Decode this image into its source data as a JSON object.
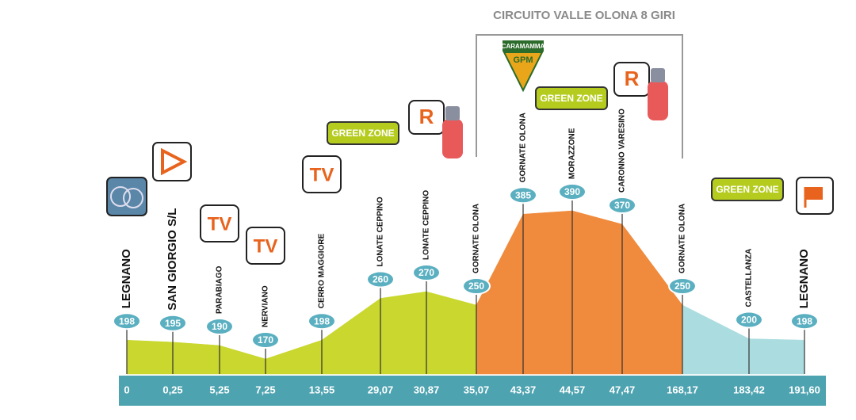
{
  "chart_data": {
    "type": "area",
    "title": "CIRCUITO VALLE OLONA 8 GIRI",
    "categories": [
      "0",
      "0,25",
      "5,25",
      "7,25",
      "13,55",
      "29,07",
      "30,87",
      "35,07",
      "43,37",
      "44,57",
      "47,47",
      "168,17",
      "183,42",
      "191,60"
    ],
    "places": [
      "LEGNANO",
      "SAN GIORGIO S/L",
      "PARABIAGO",
      "NERVIANO",
      "CERRO MAGGIORE",
      "LONATE CEPPINO",
      "LONATE CEPPINO",
      "GORNATE OLONA",
      "GORNATE OLONA",
      "MORAZZONE",
      "CARONNO VARESINO",
      "GORNATE OLONA",
      "CASTELLANZA",
      "LEGNANO"
    ],
    "values": [
      198,
      195,
      190,
      170,
      198,
      260,
      270,
      250,
      385,
      390,
      370,
      250,
      200,
      198
    ],
    "segment_colors": [
      "#c9d72e",
      "#c9d72e",
      "#c9d72e",
      "#c9d72e",
      "#c9d72e",
      "#c9d72e",
      "#c9d72e",
      "#f08a3c",
      "#f08a3c",
      "#f08a3c",
      "#f08a3c",
      "#abdde0",
      "#abdde0"
    ],
    "annotations": [
      "TV",
      "TV",
      "TV",
      "GREEN ZONE",
      "GREEN ZONE",
      "GREEN ZONE",
      "R",
      "R",
      "GPM",
      "CARAMAMMA"
    ]
  }
}
